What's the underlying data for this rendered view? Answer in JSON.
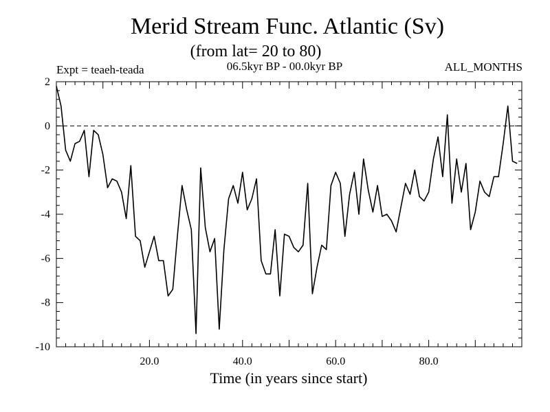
{
  "chart_data": {
    "type": "line",
    "title": "Merid Stream Func. Atlantic (Sv)",
    "subtitle": "(from lat= 20 to 80)",
    "left_note": "Expt = teaeh-teada",
    "center_note": "06.5kyr BP - 00.0kyr BP",
    "right_note": "ALL_MONTHS",
    "xlabel": "Time (in years since start)",
    "ylabel": "",
    "xlim": [
      0,
      100
    ],
    "ylim": [
      -10,
      2
    ],
    "xticks": [
      20,
      40,
      60,
      80
    ],
    "xtick_labels": [
      "20.0",
      "40.0",
      "60.0",
      "80.0"
    ],
    "yticks": [
      -10,
      -8,
      -6,
      -4,
      -2,
      0,
      2
    ],
    "ytick_labels": [
      "-10",
      "-8",
      "-6",
      "-4",
      "-2",
      "0",
      "2"
    ],
    "reference_line": {
      "y": 0,
      "style": "dashed"
    },
    "series": [
      {
        "name": "teaeh-teada",
        "x": [
          0,
          1,
          2,
          3,
          4,
          5,
          6,
          7,
          8,
          9,
          10,
          11,
          12,
          13,
          14,
          15,
          16,
          17,
          18,
          19,
          20,
          21,
          22,
          23,
          24,
          25,
          26,
          27,
          28,
          29,
          30,
          31,
          32,
          33,
          34,
          35,
          36,
          37,
          38,
          39,
          40,
          41,
          42,
          43,
          44,
          45,
          46,
          47,
          48,
          49,
          50,
          51,
          52,
          53,
          54,
          55,
          56,
          57,
          58,
          59,
          60,
          61,
          62,
          63,
          64,
          65,
          66,
          67,
          68,
          69,
          70,
          71,
          72,
          73,
          74,
          75,
          76,
          77,
          78,
          79,
          80,
          81,
          82,
          83,
          84,
          85,
          86,
          87,
          88,
          89,
          90,
          91,
          92,
          93,
          94,
          95,
          96,
          97,
          98,
          99
        ],
        "values": [
          1.8,
          0.9,
          -1.1,
          -1.6,
          -0.8,
          -0.7,
          -0.2,
          -2.3,
          -0.2,
          -0.4,
          -1.3,
          -2.8,
          -2.4,
          -2.5,
          -3.0,
          -4.2,
          -1.8,
          -5.0,
          -5.2,
          -6.4,
          -5.7,
          -5.0,
          -6.1,
          -6.1,
          -7.7,
          -7.4,
          -5.0,
          -2.7,
          -3.8,
          -4.7,
          -9.4,
          -1.9,
          -4.6,
          -5.7,
          -5.1,
          -9.2,
          -5.6,
          -3.3,
          -2.7,
          -3.5,
          -2.1,
          -3.8,
          -3.3,
          -2.4,
          -6.1,
          -6.7,
          -6.7,
          -4.7,
          -7.7,
          -4.9,
          -5.0,
          -5.5,
          -5.7,
          -5.4,
          -2.6,
          -7.6,
          -6.4,
          -5.4,
          -5.6,
          -2.7,
          -2.1,
          -2.6,
          -5.0,
          -3.1,
          -2.1,
          -4.0,
          -1.5,
          -2.9,
          -3.9,
          -2.7,
          -4.1,
          -4.0,
          -4.3,
          -4.8,
          -3.7,
          -2.6,
          -3.1,
          -2.0,
          -3.2,
          -3.4,
          -3.0,
          -1.5,
          -0.5,
          -2.3,
          0.5,
          -3.5,
          -1.5,
          -3.0,
          -1.7,
          -4.7,
          -3.9,
          -2.5,
          -3.0,
          -3.2,
          -2.3,
          -2.3,
          -0.8,
          0.9,
          -1.6,
          -1.7
        ]
      }
    ]
  }
}
